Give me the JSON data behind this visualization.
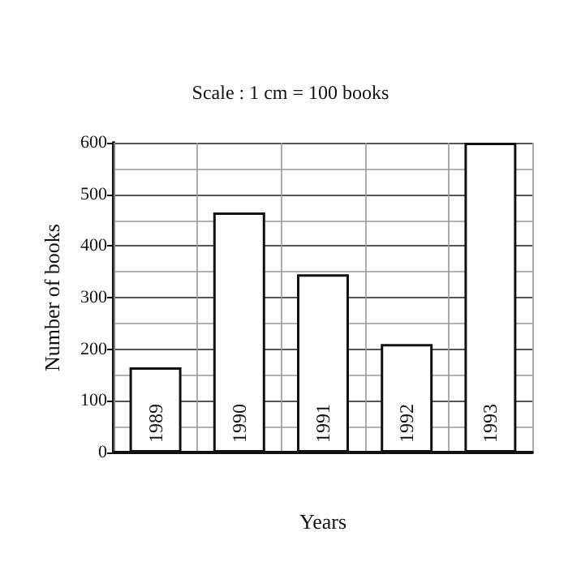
{
  "chart_data": {
    "type": "bar",
    "xlabel": "Years",
    "ylabel": "Number of books",
    "annotations": [
      "Scale : 1 cm = 100 books"
    ],
    "categories": [
      "1989",
      "1990",
      "1991",
      "1992",
      "1993"
    ],
    "values": [
      165,
      465,
      345,
      210,
      600
    ],
    "color": "#ffffff",
    "ylim": [
      0,
      600
    ],
    "yticks": [
      0,
      100,
      200,
      300,
      400,
      500,
      600
    ],
    "grid": true
  }
}
